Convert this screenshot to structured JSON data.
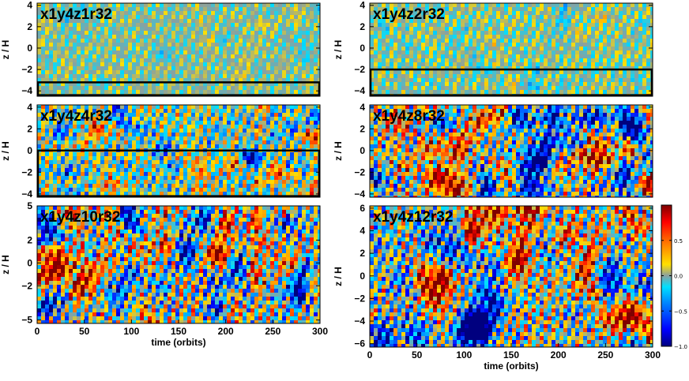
{
  "chart_data": [
    {
      "type": "heatmap",
      "title": "x1y4z1r32",
      "xlabel": "",
      "ylabel": "z / H",
      "xlim": [
        0,
        300
      ],
      "ylim": [
        -4.5,
        4.2
      ],
      "yticks": [
        "4",
        "2",
        "0",
        "−2",
        "−4"
      ],
      "ytick_values": [
        4,
        2,
        0,
        -2,
        -4
      ],
      "xticks": [],
      "box": {
        "z_min": -4.4,
        "z_max": -3.2
      },
      "amplitude": 0.22,
      "correlation_scale": "small"
    },
    {
      "type": "heatmap",
      "title": "x1y4z2r32",
      "xlabel": "",
      "ylabel": "z / H",
      "xlim": [
        0,
        300
      ],
      "ylim": [
        -4.5,
        4.2
      ],
      "yticks": [
        "4",
        "2",
        "0",
        "−2",
        "−4"
      ],
      "ytick_values": [
        4,
        2,
        0,
        -2,
        -4
      ],
      "xticks": [],
      "box": {
        "z_min": -4.4,
        "z_max": -2.0
      },
      "amplitude": 0.28,
      "correlation_scale": "small"
    },
    {
      "type": "heatmap",
      "title": "x1y4z4r32",
      "xlabel": "",
      "ylabel": "z / H",
      "xlim": [
        0,
        300
      ],
      "ylim": [
        -4.3,
        4.2
      ],
      "yticks": [
        "4",
        "2",
        "0",
        "−2",
        "−4"
      ],
      "ytick_values": [
        4,
        2,
        0,
        -2,
        -4
      ],
      "xticks": [],
      "box": {
        "z_min": -4.2,
        "z_max": 0.0
      },
      "amplitude": 0.7,
      "correlation_scale": "medium"
    },
    {
      "type": "heatmap",
      "title": "x1y4z8r32",
      "xlabel": "",
      "ylabel": "z / H",
      "xlim": [
        0,
        300
      ],
      "ylim": [
        -4.3,
        4.2
      ],
      "yticks": [
        "4",
        "2",
        "0",
        "−2",
        "−4"
      ],
      "ytick_values": [
        4,
        2,
        0,
        -2,
        -4
      ],
      "xticks": [],
      "box": null,
      "amplitude": 0.95,
      "correlation_scale": "large"
    },
    {
      "type": "heatmap",
      "title": "x1y4z10r32",
      "xlabel": "time (orbits)",
      "ylabel": "z / H",
      "xlim": [
        0,
        300
      ],
      "ylim": [
        -5.3,
        5.0
      ],
      "yticks": [
        "5",
        "2",
        "0",
        "−2",
        "−5"
      ],
      "ytick_values": [
        5,
        2,
        0,
        -2,
        -5
      ],
      "xticks": [
        "0",
        "50",
        "100",
        "150",
        "200",
        "250",
        "300"
      ],
      "xtick_values": [
        0,
        50,
        100,
        150,
        200,
        250,
        300
      ],
      "box": null,
      "amplitude": 0.95,
      "correlation_scale": "large"
    },
    {
      "type": "heatmap",
      "title": "x1y4z12r32",
      "xlabel": "time (orbits)",
      "ylabel": "z / H",
      "xlim": [
        0,
        300
      ],
      "ylim": [
        -6.3,
        6.2
      ],
      "yticks": [
        "6",
        "4",
        "2",
        "0",
        "−2",
        "−4",
        "−6"
      ],
      "ytick_values": [
        6,
        4,
        2,
        0,
        -2,
        -4,
        -6
      ],
      "xticks": [
        "0",
        "50",
        "100",
        "150",
        "200",
        "250",
        "300"
      ],
      "xtick_values": [
        0,
        50,
        100,
        150,
        200,
        250,
        300
      ],
      "box": null,
      "amplitude": 0.95,
      "correlation_scale": "large"
    }
  ],
  "colorbar": {
    "range": [
      -1.0,
      1.0
    ],
    "ticks": [
      "0.5",
      "0.0",
      "−0.5",
      "−1.0"
    ],
    "tick_values": [
      0.5,
      0.0,
      -0.5,
      -1.0
    ],
    "colormap": [
      "#00007f",
      "#0000ff",
      "#0080ff",
      "#00e0ff",
      "#8aa0a0",
      "#ffe000",
      "#ff8000",
      "#ff0000",
      "#7f0000"
    ]
  }
}
